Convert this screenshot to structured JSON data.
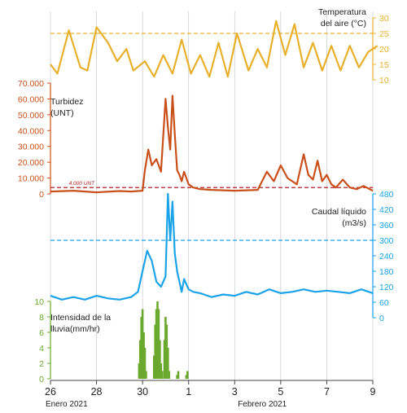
{
  "colors": {
    "temp": "#e8b02a",
    "turb": "#c9501a",
    "flow": "#1aa3e8",
    "rain": "#6aa92e",
    "grid": "#c8c8c8",
    "axis": "#444444"
  },
  "chart_data": [
    {
      "type": "line",
      "name": "temperatura",
      "title": "Temperatura\ndel aire (°C)",
      "axis_side": "right",
      "ylim": [
        10,
        30
      ],
      "ticks": [
        10,
        15,
        20,
        25,
        30
      ],
      "reference": {
        "value": 25,
        "style": "dashed",
        "label": ""
      },
      "x": [
        0,
        0.3,
        0.8,
        1.3,
        1.6,
        2.0,
        2.5,
        2.9,
        3.3,
        3.6,
        4.1,
        4.5,
        4.9,
        5.3,
        5.7,
        6.1,
        6.5,
        6.9,
        7.3,
        7.7,
        8.1,
        8.6,
        9.0,
        9.4,
        9.8,
        10.2,
        10.6,
        11.0,
        11.4,
        11.8,
        12.2,
        12.6,
        13.0,
        13.4,
        13.8,
        14.2
      ],
      "y": [
        15,
        12,
        26,
        14,
        13,
        27,
        22,
        16,
        20,
        13,
        16,
        11,
        18,
        12,
        23,
        12,
        18,
        11,
        22,
        11,
        25,
        13,
        20,
        14,
        29,
        18,
        28,
        14,
        22,
        13,
        21,
        13,
        21,
        14,
        19,
        21
      ]
    },
    {
      "type": "line",
      "name": "turbidez",
      "title": "Turbidez\n(UNT)",
      "axis_side": "left",
      "ylim": [
        0,
        70000
      ],
      "ticks": [
        "0",
        "10.000",
        "20.000",
        "30.000",
        "40.000",
        "50.000",
        "60.000",
        "70.000"
      ],
      "reference": {
        "value": 4000,
        "style": "dashed",
        "label": "4.000 UNT"
      },
      "x": [
        0,
        1,
        2,
        3,
        3.5,
        4.0,
        4.1,
        4.25,
        4.4,
        4.6,
        4.8,
        5.0,
        5.1,
        5.2,
        5.3,
        5.4,
        5.5,
        5.6,
        5.7,
        5.8,
        6.0,
        6.2,
        6.5,
        7,
        8,
        9,
        9.4,
        9.7,
        10.0,
        10.3,
        10.7,
        11.0,
        11.2,
        11.4,
        11.6,
        11.8,
        12.0,
        12.2,
        12.4,
        12.7,
        13.0,
        13.3,
        13.6,
        14.0
      ],
      "y": [
        1500,
        2000,
        1000,
        1800,
        1500,
        2000,
        15000,
        28000,
        18000,
        22000,
        14000,
        60000,
        42000,
        28000,
        62000,
        38000,
        15000,
        12000,
        8000,
        14000,
        6000,
        4000,
        3000,
        2500,
        2000,
        2500,
        14000,
        8000,
        18000,
        10000,
        6000,
        25000,
        12000,
        9000,
        21000,
        8000,
        12000,
        6000,
        4000,
        9000,
        4000,
        3000,
        5000,
        2000
      ]
    },
    {
      "type": "line",
      "name": "caudal",
      "title": "Caudal líquido\n(m3/s)",
      "axis_side": "right",
      "ylim": [
        0,
        480
      ],
      "ticks": [
        0,
        60,
        120,
        180,
        240,
        300,
        360,
        420,
        480
      ],
      "reference": {
        "value": 300,
        "style": "dashed",
        "label": ""
      },
      "x": [
        0,
        0.5,
        1,
        1.5,
        2,
        2.5,
        3,
        3.5,
        3.8,
        4.0,
        4.2,
        4.4,
        4.6,
        4.8,
        5.0,
        5.1,
        5.2,
        5.3,
        5.4,
        5.5,
        5.6,
        5.7,
        5.8,
        6.0,
        6.2,
        6.5,
        7,
        7.5,
        8,
        8.5,
        9,
        9.5,
        10,
        10.5,
        11,
        11.5,
        12,
        12.5,
        13,
        13.5,
        14
      ],
      "y": [
        85,
        70,
        80,
        70,
        85,
        75,
        70,
        80,
        100,
        180,
        260,
        220,
        140,
        120,
        160,
        480,
        300,
        450,
        250,
        180,
        140,
        100,
        150,
        110,
        100,
        95,
        80,
        90,
        85,
        100,
        90,
        110,
        95,
        100,
        110,
        100,
        105,
        100,
        95,
        110,
        95
      ]
    },
    {
      "type": "bar",
      "name": "lluvia",
      "title": "Intensidad de la\nlluvia(mm/hr)",
      "axis_side": "left",
      "ylim": [
        0,
        10
      ],
      "ticks": [
        0,
        2,
        4,
        6,
        8,
        10
      ],
      "x": [
        3.85,
        3.9,
        3.95,
        4.0,
        4.05,
        4.1,
        4.15,
        4.5,
        4.55,
        4.6,
        4.65,
        4.7,
        4.75,
        4.8,
        4.85,
        4.95,
        5.0,
        5.05,
        5.1,
        5.15,
        5.5,
        5.55,
        5.9,
        5.95
      ],
      "values": [
        2,
        5,
        8,
        9,
        6,
        4,
        1,
        3,
        7,
        9,
        10,
        9,
        5,
        2,
        1,
        5,
        8,
        7,
        4,
        1,
        0.5,
        1,
        0.5,
        1
      ]
    }
  ],
  "x_axis": {
    "range": [
      0,
      14
    ],
    "tick_labels": [
      {
        "at": 0,
        "label": "26"
      },
      {
        "at": 2,
        "label": "28"
      },
      {
        "at": 4,
        "label": "30"
      },
      {
        "at": 6,
        "label": "1"
      },
      {
        "at": 8,
        "label": "3"
      },
      {
        "at": 10,
        "label": "5"
      },
      {
        "at": 12,
        "label": "7"
      },
      {
        "at": 14,
        "label": "9"
      }
    ],
    "month_labels": [
      {
        "at": 0.7,
        "label": "Enero 2021"
      },
      {
        "at": 9.2,
        "label": "Febrero 2021"
      }
    ]
  }
}
